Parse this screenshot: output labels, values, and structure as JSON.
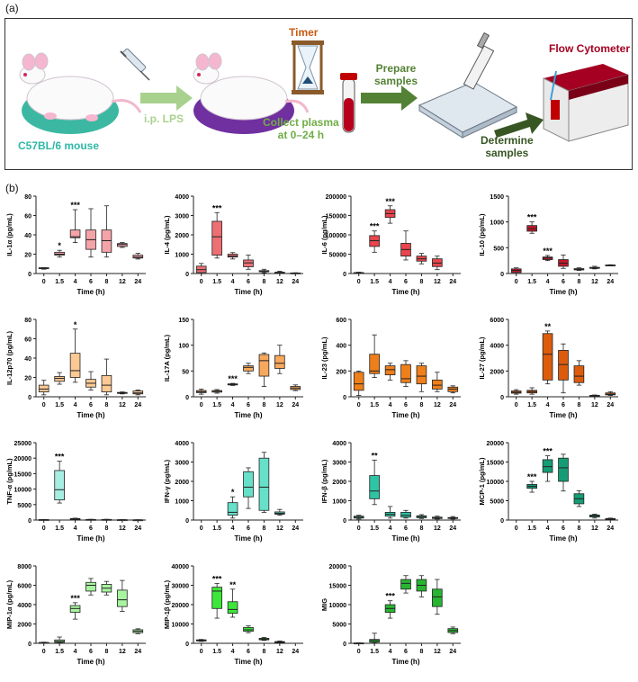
{
  "panel_a": {
    "label": "(a)",
    "mouse_label": "C57BL/6 mouse",
    "injection_label": "i.p. LPS",
    "timer_label": "Timer",
    "collect_label_line1": "Collect plasma",
    "collect_label_line2": "at 0–24 h",
    "prepare_label_line1": "Prepare",
    "prepare_label_line2": "samples",
    "determine_label_line1": "Determine",
    "determine_label_line2": "samples",
    "cytometer_label": "Flow Cytometer",
    "colors": {
      "mouse_label": "#2fb8a6",
      "injection": "#a9d18e",
      "timer": "#c55a11",
      "collect": "#70ad47",
      "prepare": "#548235",
      "determine": "#375623",
      "cytometer": "#a50021",
      "pad_teal": "#3cb8a2",
      "pad_purple": "#7030a0"
    }
  },
  "panel_b": {
    "label": "(b)"
  },
  "x_categories": [
    "0",
    "1.5",
    "4",
    "6",
    "8",
    "12",
    "24"
  ],
  "x_axis_label": "Time (h)",
  "chart_data": [
    {
      "type": "box",
      "ylabel": "IL-1α (pg/mL)",
      "yticks": [
        0,
        20,
        40,
        60,
        80
      ],
      "ylim": [
        0,
        80
      ],
      "color": "#f4a3a8",
      "boxes": [
        [
          4.5,
          5,
          5.5,
          6,
          6
        ],
        [
          17,
          19,
          20,
          22,
          24
        ],
        [
          32,
          37,
          38,
          45,
          66
        ],
        [
          17,
          25,
          35,
          45,
          67
        ],
        [
          17,
          22,
          34,
          45,
          70
        ],
        [
          27,
          28,
          30,
          31,
          32
        ],
        [
          15,
          16,
          17,
          19,
          21
        ]
      ],
      "stars": {
        "1.5": "*",
        "4": "***"
      }
    },
    {
      "type": "box",
      "ylabel": "IL-4 (pg/mL)",
      "yticks": [
        0,
        1000,
        2000,
        3000,
        4000
      ],
      "ylim": [
        0,
        4000
      ],
      "color": "#ec6f74",
      "boxes": [
        [
          0,
          50,
          200,
          380,
          520
        ],
        [
          800,
          950,
          1900,
          2700,
          3150
        ],
        [
          750,
          850,
          900,
          1000,
          1080
        ],
        [
          220,
          350,
          550,
          700,
          950
        ],
        [
          40,
          90,
          120,
          150,
          220
        ],
        [
          20,
          30,
          50,
          70,
          120
        ],
        [
          5,
          10,
          20,
          30,
          40
        ]
      ],
      "stars": {
        "1.5": "***"
      }
    },
    {
      "type": "box",
      "ylabel": "IL-6 (pg/mL)",
      "yticks": [
        0,
        50000,
        100000,
        150000,
        200000
      ],
      "ylim": [
        0,
        200000
      ],
      "color": "#e8454c",
      "boxes": [
        [
          0,
          500,
          1500,
          2500,
          3500
        ],
        [
          55000,
          70000,
          85000,
          98000,
          110000
        ],
        [
          130000,
          145000,
          155000,
          165000,
          175000
        ],
        [
          35000,
          45000,
          62000,
          78000,
          110000
        ],
        [
          25000,
          32000,
          38000,
          45000,
          52000
        ],
        [
          10000,
          18000,
          27000,
          38000,
          45000
        ],
        [
          null,
          null,
          null,
          null,
          null
        ]
      ],
      "stars": {
        "1.5": "***",
        "4": "***"
      }
    },
    {
      "type": "box",
      "ylabel": "IL-10 (pg/mL)",
      "yticks": [
        0,
        500,
        1000,
        1500
      ],
      "ylim": [
        0,
        1500
      ],
      "color": "#c0192a",
      "boxes": [
        [
          0,
          20,
          60,
          90,
          110
        ],
        [
          780,
          820,
          870,
          930,
          1000
        ],
        [
          250,
          270,
          300,
          320,
          350
        ],
        [
          100,
          140,
          200,
          270,
          360
        ],
        [
          60,
          70,
          80,
          95,
          110
        ],
        [
          90,
          100,
          110,
          120,
          140
        ],
        [
          150,
          155,
          160,
          165,
          170
        ]
      ],
      "stars": {
        "1.5": "***",
        "4": "***"
      }
    },
    {
      "type": "box",
      "ylabel": "IL-12p70 (pg/mL)",
      "yticks": [
        0,
        20,
        40,
        60,
        80
      ],
      "ylim": [
        0,
        80
      ],
      "color": "#fbc994",
      "boxes": [
        [
          2,
          5,
          8,
          12,
          17
        ],
        [
          13,
          16,
          19,
          21,
          25
        ],
        [
          15,
          20,
          27,
          45,
          70
        ],
        [
          7,
          10,
          14,
          18,
          26
        ],
        [
          2,
          5,
          12,
          22,
          39
        ],
        [
          3,
          3.5,
          4,
          4.5,
          5
        ],
        [
          2,
          3,
          4,
          6,
          7
        ]
      ],
      "stars": {
        "4": "*"
      }
    },
    {
      "type": "box",
      "ylabel": "IL-17A (pg/mL)",
      "yticks": [
        0,
        50,
        100,
        150
      ],
      "ylim": [
        0,
        150
      ],
      "color": "#f7a85c",
      "boxes": [
        [
          5,
          8,
          10,
          12,
          15
        ],
        [
          7,
          9,
          11,
          12,
          14
        ],
        [
          22,
          23,
          24,
          25,
          26
        ],
        [
          45,
          50,
          57,
          60,
          65
        ],
        [
          20,
          40,
          70,
          82,
          85
        ],
        [
          45,
          55,
          65,
          80,
          100
        ],
        [
          12,
          14,
          17,
          20,
          23
        ]
      ],
      "stars": {
        "4": "***"
      }
    },
    {
      "type": "box",
      "ylabel": "IL-23 (pg/mL)",
      "yticks": [
        0,
        200,
        400,
        600
      ],
      "ylim": [
        0,
        600
      ],
      "color": "#ef7f1a",
      "boxes": [
        [
          10,
          50,
          100,
          190,
          200
        ],
        [
          150,
          180,
          200,
          330,
          480
        ],
        [
          130,
          170,
          210,
          240,
          260
        ],
        [
          80,
          110,
          140,
          250,
          280
        ],
        [
          40,
          100,
          160,
          240,
          260
        ],
        [
          40,
          60,
          90,
          130,
          190
        ],
        [
          30,
          40,
          60,
          75,
          85
        ]
      ],
      "stars": {}
    },
    {
      "type": "box",
      "ylabel": "IL-27 (pg/mL)",
      "yticks": [
        0,
        2000,
        4000,
        6000
      ],
      "ylim": [
        0,
        6000
      ],
      "color": "#dc5c0c",
      "boxes": [
        [
          200,
          280,
          350,
          450,
          550
        ],
        [
          200,
          300,
          400,
          500,
          700
        ],
        [
          1000,
          1300,
          3300,
          4900,
          5100
        ],
        [
          300,
          1300,
          2500,
          3600,
          4100
        ],
        [
          900,
          1100,
          1600,
          2400,
          2800
        ],
        [
          20,
          50,
          80,
          110,
          140
        ],
        [
          100,
          150,
          200,
          300,
          400
        ]
      ],
      "stars": {
        "4": "**"
      }
    },
    {
      "type": "box",
      "ylabel": "TNF-α (pg/mL)",
      "yticks": [
        0,
        5000,
        10000,
        15000,
        20000,
        25000
      ],
      "ylim": [
        0,
        25000
      ],
      "color": "#a6ede2",
      "boxes": [
        [
          0,
          50,
          100,
          150,
          200
        ],
        [
          5500,
          6500,
          9800,
          16000,
          19000
        ],
        [
          200,
          300,
          400,
          500,
          600
        ],
        [
          50,
          100,
          150,
          200,
          250
        ],
        [
          50,
          100,
          150,
          200,
          250
        ],
        [
          30,
          50,
          80,
          100,
          150
        ],
        [
          20,
          30,
          50,
          70,
          100
        ]
      ],
      "stars": {
        "1.5": "***"
      }
    },
    {
      "type": "box",
      "ylabel": "IFN-γ (pg/mL)",
      "yticks": [
        0,
        1000,
        2000,
        3000,
        4000
      ],
      "ylim": [
        0,
        4000
      ],
      "color": "#66e0c8",
      "boxes": [
        [
          null,
          null,
          null,
          null,
          null
        ],
        [
          null,
          null,
          null,
          null,
          null
        ],
        [
          100,
          250,
          400,
          900,
          1200
        ],
        [
          600,
          1200,
          1700,
          2500,
          2700
        ],
        [
          400,
          500,
          1700,
          3200,
          3500
        ],
        [
          250,
          300,
          350,
          420,
          550
        ],
        [
          null,
          null,
          null,
          null,
          null
        ]
      ],
      "stars": {
        "4": "*"
      }
    },
    {
      "type": "box",
      "ylabel": "IFN-β (pg/mL)",
      "yticks": [
        0,
        1000,
        2000,
        3000,
        4000
      ],
      "ylim": [
        0,
        4000
      ],
      "color": "#2fc4a4",
      "boxes": [
        [
          50,
          100,
          150,
          200,
          250
        ],
        [
          800,
          1100,
          1500,
          2300,
          3100
        ],
        [
          100,
          200,
          300,
          400,
          700
        ],
        [
          100,
          150,
          250,
          400,
          500
        ],
        [
          80,
          120,
          180,
          220,
          280
        ],
        [
          50,
          80,
          120,
          150,
          200
        ],
        [
          50,
          80,
          100,
          130,
          180
        ]
      ],
      "stars": {
        "1.5": "**"
      }
    },
    {
      "type": "box",
      "ylabel": "MCP-1 (pg/mL)",
      "yticks": [
        0,
        5000,
        10000,
        15000,
        20000
      ],
      "ylim": [
        0,
        20000
      ],
      "color": "#169c75",
      "boxes": [
        [
          null,
          null,
          null,
          null,
          null
        ],
        [
          7200,
          8200,
          8700,
          9200,
          10000
        ],
        [
          10000,
          12300,
          13800,
          15600,
          16600
        ],
        [
          7500,
          10000,
          13500,
          16000,
          17000
        ],
        [
          3500,
          4200,
          5500,
          6800,
          7600
        ],
        [
          500,
          800,
          1100,
          1300,
          1500
        ],
        [
          100,
          200,
          300,
          400,
          500
        ]
      ],
      "stars": {
        "1.5": "***",
        "4": "***"
      }
    },
    {
      "type": "box",
      "ylabel": "MIP-1α (pg/mL)",
      "yticks": [
        0,
        2000,
        4000,
        6000,
        8000
      ],
      "ylim": [
        0,
        8000
      ],
      "color": "#a8f5a0",
      "boxes": [
        [
          0,
          30,
          60,
          90,
          120
        ],
        [
          50,
          100,
          200,
          350,
          650
        ],
        [
          2500,
          3200,
          3600,
          3900,
          4200
        ],
        [
          5000,
          5400,
          6000,
          6300,
          6700
        ],
        [
          5000,
          5300,
          5700,
          6100,
          6400
        ],
        [
          3300,
          3800,
          4500,
          5500,
          6500
        ],
        [
          1000,
          1100,
          1250,
          1400,
          1500
        ]
      ],
      "stars": {
        "4": "***"
      }
    },
    {
      "type": "box",
      "ylabel": "MIP-1β (pg/mL)",
      "yticks": [
        0,
        10000,
        20000,
        30000,
        40000
      ],
      "ylim": [
        0,
        40000
      ],
      "color": "#3ee63a",
      "boxes": [
        [
          1000,
          1200,
          1500,
          1800,
          2000
        ],
        [
          13000,
          18000,
          27000,
          29000,
          31000
        ],
        [
          13500,
          15500,
          17500,
          21500,
          28000
        ],
        [
          5500,
          6200,
          7000,
          8200,
          9000
        ],
        [
          1500,
          1800,
          2200,
          2600,
          3000
        ],
        [
          200,
          400,
          700,
          900,
          1200
        ],
        [
          null,
          null,
          null,
          null,
          null
        ]
      ],
      "stars": {
        "1.5": "***",
        "4": "**"
      }
    },
    {
      "type": "box",
      "ylabel": "MIG",
      "yticks": [
        0,
        5000,
        10000,
        15000,
        20000
      ],
      "ylim": [
        0,
        20000
      ],
      "color": "#28b532",
      "boxes": [
        [
          0,
          30,
          50,
          80,
          100
        ],
        [
          100,
          300,
          700,
          1000,
          2600
        ],
        [
          6500,
          8000,
          9000,
          10000,
          11000
        ],
        [
          13000,
          14000,
          15500,
          16500,
          17500
        ],
        [
          12000,
          13500,
          15000,
          16500,
          17500
        ],
        [
          7500,
          9500,
          12000,
          14000,
          16500
        ],
        [
          2500,
          2800,
          3300,
          3800,
          4200
        ]
      ],
      "stars": {
        "4": "***"
      }
    }
  ]
}
